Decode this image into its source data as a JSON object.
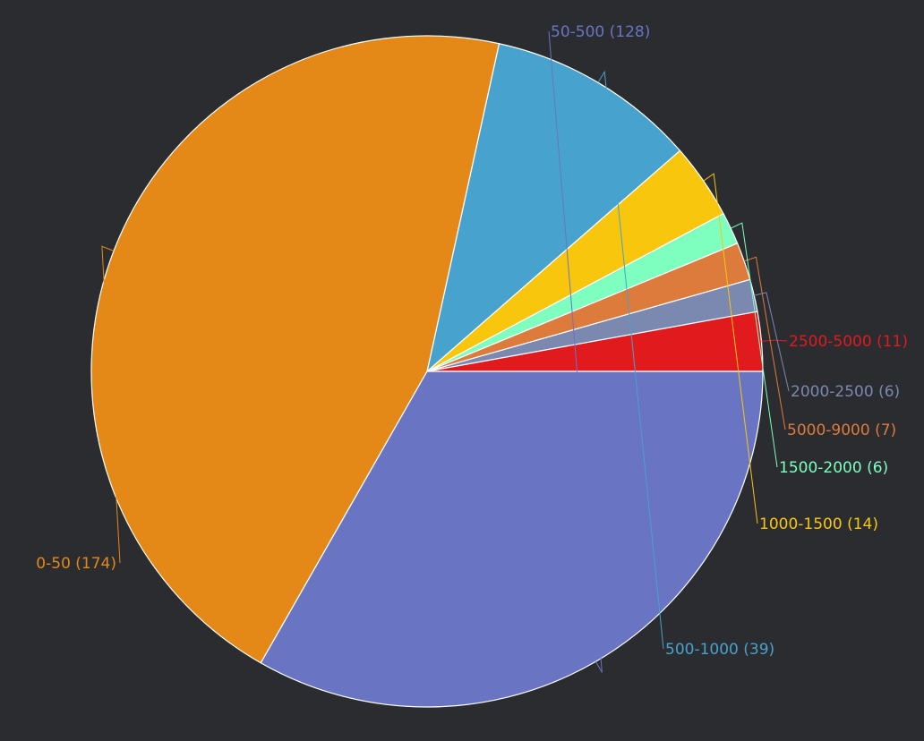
{
  "chart_data": {
    "type": "pie",
    "title": "",
    "slice_border_color": "#ffffff",
    "slices": [
      {
        "label": "2500-5000",
        "value": 11,
        "color": "#e11a1e",
        "display": "2500-5000 (11)"
      },
      {
        "label": "2000-2500",
        "value": 6,
        "color": "#7b88b0",
        "display": "2000-2500 (6)"
      },
      {
        "label": "5000-9000",
        "value": 7,
        "color": "#dd7b3c",
        "display": "5000-9000 (7)"
      },
      {
        "label": "1500-2000",
        "value": 6,
        "color": "#7effc0",
        "display": "1500-2000 (6)"
      },
      {
        "label": "1000-1500",
        "value": 14,
        "color": "#f8c70d",
        "display": "1000-1500 (14)"
      },
      {
        "label": "500-1000",
        "value": 39,
        "color": "#47a2cd",
        "display": "500-1000 (39)"
      },
      {
        "label": "0-50",
        "value": 174,
        "color": "#e48818",
        "display": "0-50 (174)"
      },
      {
        "label": "50-500",
        "value": 128,
        "color": "#6975c3",
        "display": "50-500 (128)"
      }
    ]
  }
}
